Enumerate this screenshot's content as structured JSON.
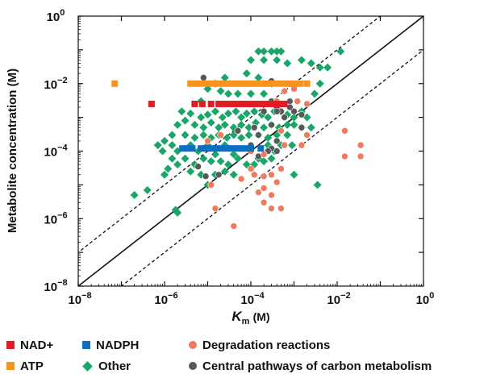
{
  "chart_data": {
    "type": "scatter",
    "log_x": true,
    "log_y": true,
    "xlim": [
      1e-08,
      1
    ],
    "ylim": [
      1e-08,
      1
    ],
    "xlabel_main": "K",
    "xlabel_sub": "m",
    "xlabel_unit": "(M)",
    "ylabel": "Metabolite concentration (M)",
    "x_tick_labels": [
      {
        "base": "10",
        "exp": "−8",
        "value": 1e-08
      },
      {
        "base": "10",
        "exp": "−6",
        "value": 1e-06
      },
      {
        "base": "10",
        "exp": "−4",
        "value": 0.0001
      },
      {
        "base": "10",
        "exp": "−2",
        "value": 0.01
      },
      {
        "base": "10",
        "exp": "0",
        "value": 1
      }
    ],
    "y_tick_labels": [
      {
        "base": "10",
        "exp": "−8",
        "value": 1e-08
      },
      {
        "base": "10",
        "exp": "−6",
        "value": 1e-06
      },
      {
        "base": "10",
        "exp": "−4",
        "value": 0.0001
      },
      {
        "base": "10",
        "exp": "−2",
        "value": 0.01
      },
      {
        "base": "10",
        "exp": "0",
        "value": 1
      }
    ],
    "reference_lines": [
      {
        "style": "solid",
        "relation": "y = x"
      },
      {
        "style": "dashed",
        "relation": "y = 10x"
      },
      {
        "style": "dashed",
        "relation": "y = x/10"
      }
    ],
    "series": [
      {
        "name": "NAD+",
        "color": "#e31b23",
        "marker": "square",
        "points": [
          [
            5e-06,
            0.0025
          ],
          [
            7.5e-06,
            0.0025
          ],
          [
            1.2e-05,
            0.0025
          ],
          [
            1.8e-05,
            0.0025
          ],
          [
            2.4e-05,
            0.0025
          ],
          [
            3e-05,
            0.0025
          ],
          [
            3.8e-05,
            0.0025
          ],
          [
            4.8e-05,
            0.0025
          ],
          [
            6e-05,
            0.0025
          ],
          [
            7.5e-05,
            0.0025
          ],
          [
            9.5e-05,
            0.0025
          ],
          [
            0.00012,
            0.0025
          ],
          [
            0.00016,
            0.0025
          ],
          [
            0.00021,
            0.0025
          ],
          [
            0.00028,
            0.0025
          ],
          [
            0.00036,
            0.0025
          ],
          [
            0.00046,
            0.0025
          ],
          [
            0.0006,
            0.0025
          ],
          [
            5e-07,
            0.0025
          ]
        ]
      },
      {
        "name": "NADPH",
        "color": "#0a6fc1",
        "marker": "square",
        "points": [
          [
            2.6e-06,
            0.00012
          ],
          [
            3.4e-06,
            0.00012
          ],
          [
            4.4e-06,
            0.00012
          ],
          [
            7e-06,
            0.00012
          ],
          [
            9e-06,
            0.00012
          ],
          [
            1.2e-05,
            0.00012
          ],
          [
            1.6e-05,
            0.00012
          ],
          [
            2.1e-05,
            0.00012
          ],
          [
            2.8e-05,
            0.00012
          ],
          [
            3.6e-05,
            0.00012
          ],
          [
            4.6e-05,
            0.00012
          ],
          [
            6e-05,
            0.00012
          ],
          [
            7.8e-05,
            0.00012
          ],
          [
            0.0001,
            0.00012
          ],
          [
            0.00017,
            0.00012
          ]
        ]
      },
      {
        "name": "Degradation reactions",
        "color": "#f07a5e",
        "marker": "circle",
        "points": [
          [
            0.0004,
            0.01
          ],
          [
            0.0006,
            0.006
          ],
          [
            0.001,
            0.007
          ],
          [
            0.0004,
            0.003
          ],
          [
            0.0012,
            0.003
          ],
          [
            0.002,
            0.0025
          ],
          [
            2e-05,
            0.0003
          ],
          [
            1e-05,
            0.0002
          ],
          [
            0.0005,
            0.0004
          ],
          [
            0.002,
            0.0003
          ],
          [
            0.0006,
            0.00015
          ],
          [
            0.0015,
            0.00015
          ],
          [
            0.0001,
            0.0001
          ],
          [
            0.0002,
            8e-05
          ],
          [
            0.0001,
            3e-05
          ],
          [
            0.0005,
            3e-05
          ],
          [
            0.00012,
            2e-05
          ],
          [
            0.0002,
            1.8e-05
          ],
          [
            0.0003,
            2e-05
          ],
          [
            6e-05,
            1.5e-05
          ],
          [
            0.0004,
            1.2e-05
          ],
          [
            0.0002,
            8e-06
          ],
          [
            0.00015,
            6e-06
          ],
          [
            0.0003,
            5e-06
          ],
          [
            0.0002,
            3e-06
          ],
          [
            0.0005,
            2e-06
          ],
          [
            0.0003,
            2e-06
          ],
          [
            1.2e-05,
            1e-05
          ],
          [
            1.5e-05,
            2e-06
          ],
          [
            4e-05,
            6e-07
          ],
          [
            0.015,
            0.0004
          ],
          [
            0.035,
            0.00015
          ],
          [
            0.015,
            7e-05
          ],
          [
            0.035,
            7e-05
          ]
        ]
      },
      {
        "name": "ATP",
        "color": "#f7941d",
        "marker": "square",
        "points": [
          [
            7e-08,
            0.01
          ],
          [
            4e-06,
            0.01
          ],
          [
            5.5e-06,
            0.01
          ],
          [
            7.5e-06,
            0.01
          ],
          [
            1e-05,
            0.01
          ],
          [
            1.4e-05,
            0.01
          ],
          [
            1.9e-05,
            0.01
          ],
          [
            2.6e-05,
            0.01
          ],
          [
            3.5e-05,
            0.01
          ],
          [
            4.8e-05,
            0.01
          ],
          [
            6.5e-05,
            0.01
          ],
          [
            8.8e-05,
            0.01
          ],
          [
            0.00012,
            0.01
          ],
          [
            0.00016,
            0.01
          ],
          [
            0.00022,
            0.01
          ],
          [
            0.0003,
            0.01
          ],
          [
            0.00041,
            0.01
          ],
          [
            0.00056,
            0.01
          ],
          [
            0.00076,
            0.01
          ],
          [
            0.001,
            0.01
          ],
          [
            0.0014,
            0.01
          ],
          [
            0.002,
            0.01
          ]
        ]
      },
      {
        "name": "Other",
        "color": "#1aa668",
        "marker": "diamond",
        "points": [
          [
            0.00015,
            0.09
          ],
          [
            0.0002,
            0.09
          ],
          [
            0.0003,
            0.09
          ],
          [
            0.0004,
            0.09
          ],
          [
            0.0005,
            0.09
          ],
          [
            0.012,
            0.09
          ],
          [
            0.0001,
            0.05
          ],
          [
            0.0002,
            0.05
          ],
          [
            0.0004,
            0.05
          ],
          [
            0.0007,
            0.04
          ],
          [
            0.0015,
            0.05
          ],
          [
            0.0025,
            0.04
          ],
          [
            0.004,
            0.03
          ],
          [
            0.006,
            0.03
          ],
          [
            8e-05,
            0.02
          ],
          [
            1.5e-05,
            0.01
          ],
          [
            2.5e-05,
            0.015
          ],
          [
            0.00015,
            0.015
          ],
          [
            0.0003,
            0.01
          ],
          [
            0.004,
            0.01
          ],
          [
            1e-05,
            0.007
          ],
          [
            2e-05,
            0.006
          ],
          [
            3e-05,
            0.005
          ],
          [
            5e-05,
            0.005
          ],
          [
            0.0001,
            0.005
          ],
          [
            0.0002,
            0.005
          ],
          [
            0.003,
            0.005
          ],
          [
            7e-06,
            0.003
          ],
          [
            2.5e-06,
            0.0015
          ],
          [
            4e-06,
            0.0013
          ],
          [
            7e-06,
            0.001
          ],
          [
            1e-05,
            0.0012
          ],
          [
            1.5e-05,
            0.0015
          ],
          [
            2.2e-05,
            0.001
          ],
          [
            3e-05,
            0.0013
          ],
          [
            4.5e-05,
            0.0015
          ],
          [
            6e-05,
            0.001
          ],
          [
            8e-05,
            0.0013
          ],
          [
            0.00012,
            0.0015
          ],
          [
            0.00018,
            0.0012
          ],
          [
            0.00025,
            0.001
          ],
          [
            0.00035,
            0.0015
          ],
          [
            0.0005,
            0.0015
          ],
          [
            0.0007,
            0.0012
          ],
          [
            0.001,
            0.001
          ],
          [
            0.0015,
            0.0015
          ],
          [
            0.002,
            0.001
          ],
          [
            2e-06,
            0.0006
          ],
          [
            3e-06,
            0.0008
          ],
          [
            5e-06,
            0.0006
          ],
          [
            8e-06,
            0.0005
          ],
          [
            1.2e-05,
            0.0007
          ],
          [
            1.8e-05,
            0.0005
          ],
          [
            2.5e-05,
            0.0006
          ],
          [
            4e-05,
            0.0005
          ],
          [
            6e-05,
            0.0006
          ],
          [
            9e-05,
            0.0005
          ],
          [
            0.00013,
            0.0007
          ],
          [
            0.0002,
            0.0005
          ],
          [
            0.0003,
            0.0006
          ],
          [
            0.00045,
            0.0005
          ],
          [
            0.0007,
            0.0006
          ],
          [
            0.001,
            0.0006
          ],
          [
            0.0015,
            0.0005
          ],
          [
            0.0025,
            0.0005
          ],
          [
            1.5e-06,
            0.0003
          ],
          [
            3e-06,
            0.0003
          ],
          [
            5e-06,
            0.00025
          ],
          [
            8e-06,
            0.0003
          ],
          [
            1.2e-05,
            0.00025
          ],
          [
            1.8e-05,
            0.0003
          ],
          [
            2.8e-05,
            0.00025
          ],
          [
            4e-05,
            0.0003
          ],
          [
            6e-05,
            0.00025
          ],
          [
            9e-05,
            0.0003
          ],
          [
            0.00015,
            0.0003
          ],
          [
            0.00025,
            0.00025
          ],
          [
            0.0004,
            0.0003
          ],
          [
            0.0007,
            0.0003
          ],
          [
            1e-06,
            0.0002
          ],
          [
            1.5e-06,
            0.00015
          ],
          [
            2e-06,
            0.0001
          ],
          [
            4e-06,
            0.00015
          ],
          [
            6e-06,
            0.0001
          ],
          [
            1e-05,
            0.00015
          ],
          [
            1.5e-05,
            8e-05
          ],
          [
            2.5e-05,
            0.00015
          ],
          [
            4e-05,
            8e-05
          ],
          [
            0.00015,
            6e-05
          ],
          [
            0.00025,
            0.00015
          ],
          [
            0.00035,
            0.0001
          ],
          [
            0.0005,
            0.00015
          ],
          [
            0.0009,
            0.00015
          ],
          [
            1.5e-06,
            6e-05
          ],
          [
            2e-06,
            4e-05
          ],
          [
            3e-06,
            6e-05
          ],
          [
            5e-06,
            4e-05
          ],
          [
            8e-06,
            6e-05
          ],
          [
            1.2e-05,
            5e-05
          ],
          [
            2e-05,
            5e-05
          ],
          [
            3e-05,
            4e-05
          ],
          [
            5e-05,
            6e-05
          ],
          [
            8e-05,
            4e-05
          ],
          [
            0.00012,
            4e-05
          ],
          [
            0.0002,
            5e-05
          ],
          [
            0.0003,
            6e-05
          ],
          [
            1e-06,
            2e-05
          ],
          [
            1.2e-06,
            3e-05
          ],
          [
            4e-06,
            2.5e-05
          ],
          [
            7e-06,
            2e-05
          ],
          [
            1.5e-05,
            2e-05
          ],
          [
            2.5e-05,
            2.5e-05
          ],
          [
            4e-05,
            2e-05
          ],
          [
            0.001,
            2e-05
          ],
          [
            1e-05,
            1e-05
          ],
          [
            0.0035,
            1e-05
          ],
          [
            4e-07,
            7e-06
          ],
          [
            1.8e-06,
            1.8e-06
          ],
          [
            2e-06,
            1.5e-06
          ],
          [
            2e-07,
            5e-06
          ],
          [
            9e-07,
            0.0001
          ],
          [
            7e-07,
            0.00015
          ]
        ]
      },
      {
        "name": "Central pathways of carbon metabolism",
        "color": "#58585a",
        "marker": "circle",
        "points": [
          [
            8e-06,
            0.015
          ],
          [
            0.0001,
            0.01
          ],
          [
            0.00014,
            0.01
          ],
          [
            0.0003,
            0.012
          ],
          [
            0.0002,
            0.0025
          ],
          [
            0.0003,
            0.003
          ],
          [
            0.0008,
            0.003
          ],
          [
            0.0002,
            0.0015
          ],
          [
            0.0004,
            0.002
          ],
          [
            0.0005,
            0.0015
          ],
          [
            0.001,
            0.0015
          ],
          [
            0.0015,
            0.0012
          ],
          [
            0.0008,
            0.002
          ],
          [
            0.0006,
            0.001
          ],
          [
            0.0003,
            0.0006
          ],
          [
            0.00012,
            0.0005
          ],
          [
            5e-05,
            0.0004
          ],
          [
            0.0015,
            0.0005
          ],
          [
            0.00015,
            0.0003
          ],
          [
            0.0004,
            0.0002
          ],
          [
            0.0001,
            0.00015
          ],
          [
            0.0003,
            0.00012
          ],
          [
            0.0004,
            0.0001
          ],
          [
            0.00025,
            0.0001
          ],
          [
            0.00015,
            7e-05
          ],
          [
            6e-06,
            3.5e-05
          ],
          [
            1.8e-05,
            2e-05
          ],
          [
            2e-05,
            0.00012
          ],
          [
            0.0004,
            0.0015
          ],
          [
            9e-06,
            1.8e-05
          ]
        ]
      }
    ]
  },
  "legend": {
    "rows": [
      [
        {
          "label": "NAD+",
          "marker": "square",
          "color": "#e31b23"
        },
        {
          "label": "NADPH",
          "marker": "square",
          "color": "#0a6fc1"
        },
        {
          "label": "Degradation reactions",
          "marker": "circle",
          "color": "#f07a5e"
        }
      ],
      [
        {
          "label": "ATP",
          "marker": "square",
          "color": "#f7941d"
        },
        {
          "label": "Other",
          "marker": "diamond",
          "color": "#1aa668"
        },
        {
          "label": "Central pathways of carbon metabolism",
          "marker": "circle",
          "color": "#58585a"
        }
      ]
    ]
  }
}
